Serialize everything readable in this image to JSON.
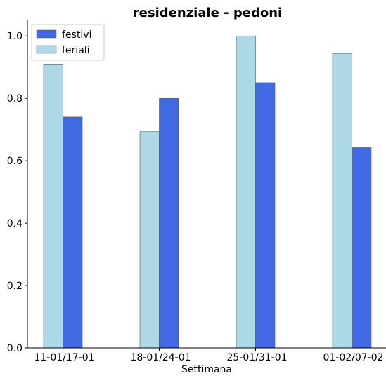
{
  "chart_data": {
    "type": "bar",
    "title": "residenziale - pedoni",
    "xlabel": "Settimana",
    "ylabel": "",
    "categories": [
      "11-01/17-01",
      "18-01/24-01",
      "25-01/31-01",
      "01-02/07-02"
    ],
    "series": [
      {
        "name": "feriali",
        "color": "#add8e6",
        "values": [
          0.91,
          0.693,
          1.0,
          0.944
        ]
      },
      {
        "name": "festivi",
        "color": "#4169e1",
        "values": [
          0.74,
          0.8,
          0.85,
          0.642
        ]
      }
    ],
    "legend_order": [
      "festivi",
      "feriali"
    ],
    "ylim": [
      0,
      1.05
    ],
    "yticks": [
      "0.0",
      "0.2",
      "0.4",
      "0.6",
      "0.8",
      "1.0"
    ],
    "grid": false,
    "legend_position": "top-left"
  }
}
